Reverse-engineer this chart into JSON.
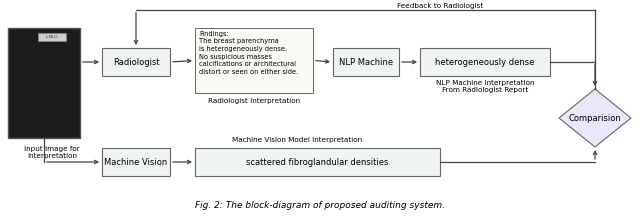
{
  "fig_width": 6.4,
  "fig_height": 2.18,
  "dpi": 100,
  "bg_color": "#ffffff",
  "box_fill": "#f0f4f0",
  "box_edge": "#666666",
  "diamond_fill": "#e8e8f8",
  "diamond_edge": "#666666",
  "arrow_color": "#444444",
  "text_color": "#000000",
  "font_size": 6.0,
  "small_font": 5.2,
  "tiny_font": 4.8,
  "caption": "Fig. 2: The block-diagram of proposed auditing system.",
  "feedback_label": "Feedback to Radiologist",
  "input_label": "Input Image for\nInterpretation",
  "radiologist_label": "Radiologist",
  "findings_text": "Findings:\nThe breast parenchyma\nis heterogeneously dense.\nNo suspicious masses\ncalcifications or architectural\ndistort or seen on either side.",
  "rad_interp_label": "Radiologist Interpretation",
  "nlp_label": "NLP Machine",
  "nlp_output_label": "heterogeneously dense",
  "nlp_interp_label": "NLP Machine Interpretation\nFrom Radiologist Report",
  "comparison_label": "Comparision",
  "machine_vision_label": "Machine Vision",
  "mv_output_label": "scattered fibroglandular densities",
  "mv_interp_label": "Machine Vision Model Interpretation"
}
